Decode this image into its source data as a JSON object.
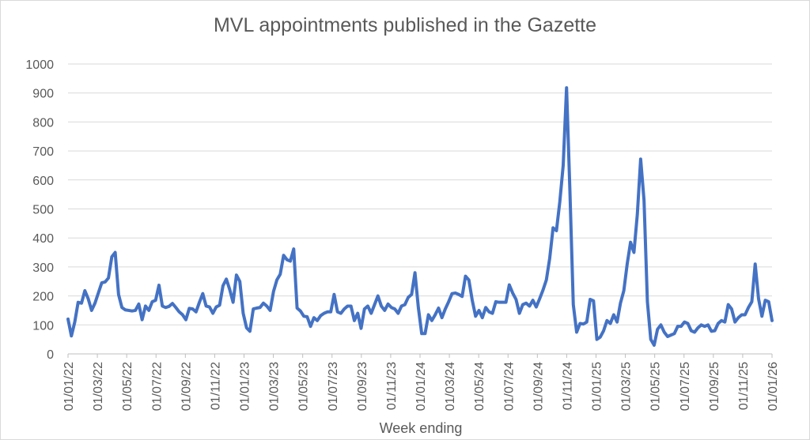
{
  "chart_data": {
    "type": "line",
    "title": "MVL appointments published in the Gazette",
    "xlabel": "Week ending",
    "ylabel": "",
    "ylim": [
      0,
      1000
    ],
    "yticks": [
      0,
      100,
      200,
      300,
      400,
      500,
      600,
      700,
      800,
      900,
      1000
    ],
    "grid": true,
    "legend": "none",
    "line_color": "#4472C4",
    "xticks": [
      "01/01/22",
      "01/03/22",
      "01/05/22",
      "01/07/22",
      "01/09/22",
      "01/11/22",
      "01/01/23",
      "01/03/23",
      "01/05/23",
      "01/07/23",
      "01/09/23",
      "01/11/23",
      "01/01/24",
      "01/03/24",
      "01/05/24",
      "01/07/24",
      "01/09/24",
      "01/11/24",
      "01/01/25",
      "01/03/25",
      "01/05/25",
      "01/07/25",
      "01/09/25",
      "01/11/25",
      "01/01/26"
    ],
    "series": [
      {
        "values": [
          120,
          62,
          110,
          178,
          175,
          218,
          190,
          150,
          175,
          210,
          245,
          248,
          262,
          335,
          350,
          205,
          160,
          152,
          150,
          148,
          150,
          172,
          118,
          165,
          150,
          180,
          185,
          237,
          165,
          160,
          164,
          174,
          160,
          145,
          135,
          118,
          157,
          155,
          145,
          178,
          208,
          165,
          162,
          140,
          162,
          168,
          235,
          258,
          222,
          178,
          272,
          250,
          140,
          90,
          78,
          155,
          158,
          160,
          175,
          165,
          150,
          215,
          255,
          275,
          340,
          325,
          320,
          362,
          158,
          148,
          130,
          128,
          95,
          125,
          115,
          132,
          140,
          145,
          145,
          205,
          145,
          140,
          155,
          165,
          165,
          115,
          140,
          88,
          155,
          165,
          140,
          170,
          200,
          165,
          150,
          172,
          160,
          155,
          140,
          165,
          170,
          195,
          205,
          280,
          160,
          70,
          70,
          135,
          115,
          135,
          158,
          125,
          155,
          180,
          208,
          210,
          205,
          198,
          268,
          255,
          185,
          130,
          150,
          125,
          160,
          145,
          140,
          180,
          178,
          178,
          178,
          238,
          210,
          188,
          140,
          170,
          175,
          165,
          185,
          162,
          190,
          220,
          255,
          330,
          435,
          425,
          525,
          650,
          918,
          560,
          170,
          75,
          105,
          103,
          110,
          188,
          183,
          50,
          58,
          80,
          115,
          105,
          135,
          110,
          175,
          218,
          310,
          385,
          350,
          480,
          672,
          530,
          180,
          50,
          30,
          85,
          100,
          75,
          60,
          65,
          70,
          95,
          95,
          110,
          105,
          80,
          75,
          90,
          100,
          95,
          100,
          78,
          80,
          105,
          115,
          110,
          170,
          155,
          110,
          125,
          135,
          135,
          160,
          180,
          310,
          190,
          130,
          185,
          180,
          115
        ]
      }
    ]
  }
}
